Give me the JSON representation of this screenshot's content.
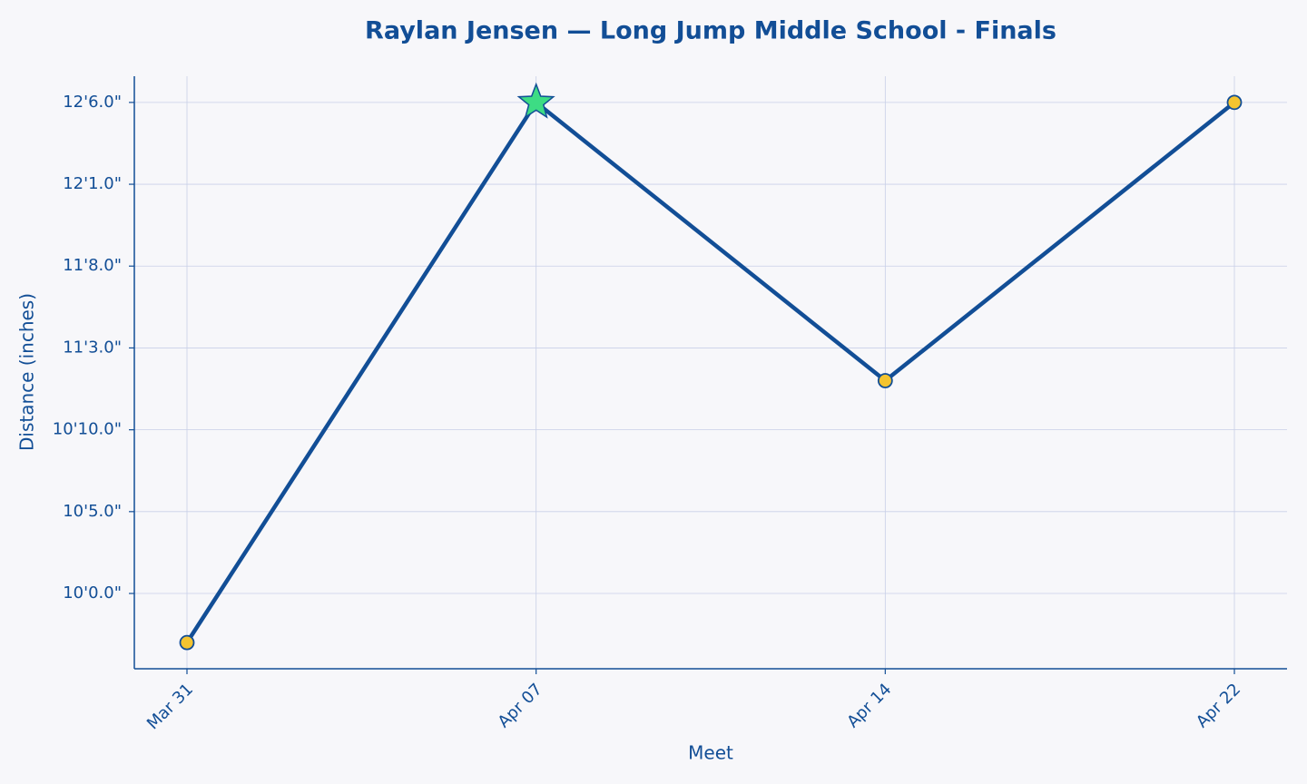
{
  "chart_data": {
    "type": "line",
    "title": "Raylan Jensen — Long Jump Middle School - Finals",
    "xlabel": "Meet",
    "ylabel": "Distance (inches)",
    "categories": [
      "Mar 31",
      "Apr 07",
      "Apr 14",
      "Apr 22"
    ],
    "series": [
      {
        "name": "Distance",
        "color": "#124e96",
        "marker_color": "#f4c430",
        "highlight_color": "#3ddc84",
        "values": [
          117,
          150,
          133,
          150
        ]
      }
    ],
    "ylim": [
      115.4,
      151.6
    ],
    "yticks": [
      {
        "value": 120,
        "label": "10'0.0\""
      },
      {
        "value": 125,
        "label": "10'5.0\""
      },
      {
        "value": 130,
        "label": "10'10.0\""
      },
      {
        "value": 135,
        "label": "11'3.0\""
      },
      {
        "value": 140,
        "label": "11'8.0\""
      },
      {
        "value": 145,
        "label": "12'1.0\""
      },
      {
        "value": 150,
        "label": "12'6.0\""
      }
    ],
    "grid": true
  }
}
